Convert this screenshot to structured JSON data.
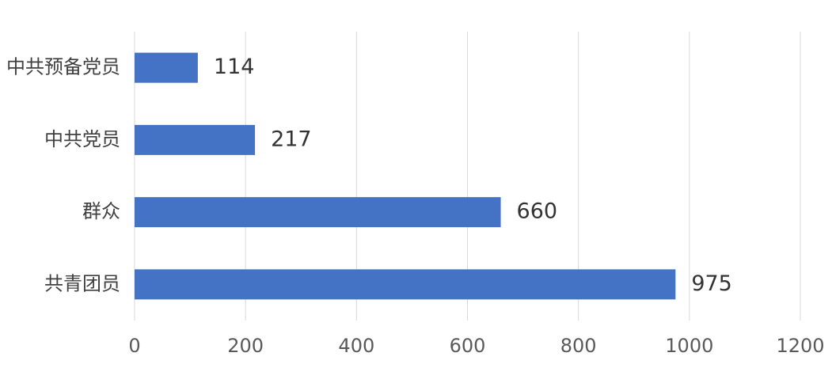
{
  "chart_data": {
    "type": "barh",
    "categories": [
      "中共预备党员",
      "中共党员",
      "群众",
      "共青团员"
    ],
    "values": [
      114,
      217,
      660,
      975
    ],
    "color": "#4472c4",
    "xlim": [
      0,
      1200
    ],
    "xticks": [
      0,
      200,
      400,
      600,
      800,
      1000,
      1200
    ],
    "grid": true
  }
}
